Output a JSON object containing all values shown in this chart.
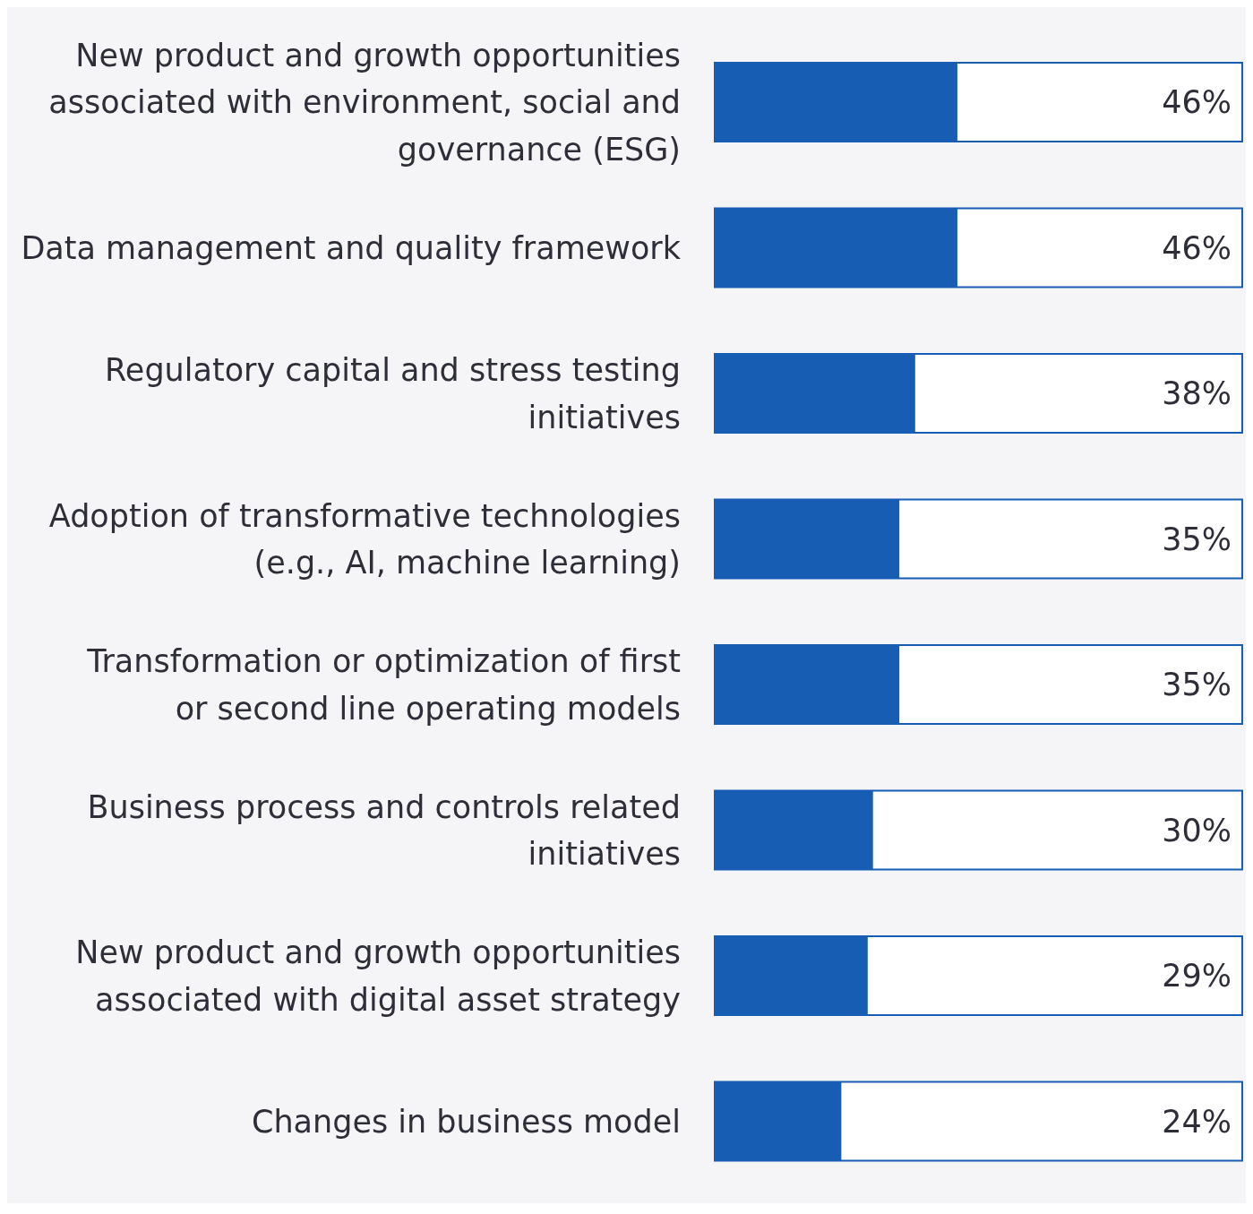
{
  "chart_data": {
    "type": "bar",
    "orientation": "horizontal",
    "categories": [
      "New product and growth opportunities associated with environment, social and governance (ESG)",
      "Data management and quality framework",
      "Regulatory capital and stress testing initiatives",
      "Adoption of transformative technologies (e.g., AI, machine learning)",
      "Transformation or optimization of first or second line operating models",
      "Business process and controls related initiatives",
      "New product and growth opportunities associated with digital asset strategy",
      "Changes in business model"
    ],
    "values": [
      46,
      46,
      38,
      35,
      35,
      30,
      29,
      24
    ],
    "value_labels": [
      "46%",
      "46%",
      "38%",
      "35%",
      "35%",
      "30%",
      "29%",
      "24%"
    ],
    "color": "#175db3",
    "xlim": [
      0,
      100
    ]
  }
}
